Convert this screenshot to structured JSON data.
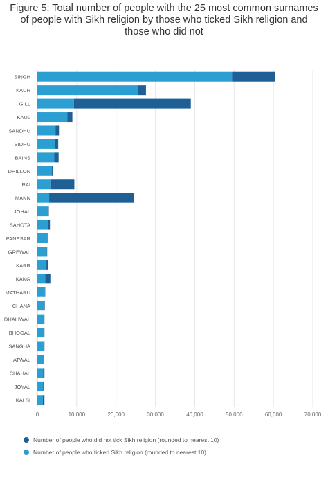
{
  "chart_data": {
    "type": "bar",
    "orientation": "horizontal",
    "stacked": true,
    "title": "Figure 5: Total number of people with the 25 most common surnames of people with Sikh religion by those who ticked Sikh religion and those who did not",
    "categories": [
      "SINGH",
      "KAUR",
      "GILL",
      "KAUL",
      "SANDHU",
      "SIDHU",
      "BAINS",
      "DHILLON",
      "RAI",
      "MANN",
      "JOHAL",
      "SAHOTA",
      "PANESAR",
      "GREWAL",
      "KARR",
      "KANG",
      "MATHARU",
      "CHANA",
      "DHALIWAL",
      "BHOGAL",
      "SANGHA",
      "ATWAL",
      "CHAHAL",
      "JOYAL",
      "KALSI"
    ],
    "series": [
      {
        "name": "Number of people who ticked Sikh religion (rounded to nearest 10)",
        "color": "#2b9fd1",
        "values": [
          49500,
          25500,
          9300,
          7600,
          4600,
          4500,
          4300,
          3700,
          3300,
          3000,
          2800,
          2700,
          2600,
          2400,
          2300,
          2000,
          1900,
          1800,
          1700,
          1700,
          1700,
          1600,
          1500,
          1500,
          1400
        ]
      },
      {
        "name": "Number of people who did not tick Sikh religion (rounded to nearest 10)",
        "color": "#1e5f96",
        "values": [
          11000,
          2100,
          29700,
          1300,
          900,
          800,
          1100,
          300,
          6100,
          21500,
          100,
          500,
          100,
          100,
          400,
          1300,
          100,
          100,
          100,
          100,
          100,
          100,
          300,
          100,
          400
        ]
      }
    ],
    "xlim": [
      0,
      70000
    ],
    "xticks": [
      0,
      10000,
      20000,
      30000,
      40000,
      50000,
      60000,
      70000
    ],
    "xtick_labels": [
      "0",
      "10,000",
      "20,000",
      "30,000",
      "40,000",
      "50,000",
      "60,000",
      "70,000"
    ],
    "grid": true,
    "legend_position": "bottom-left",
    "legend_order": [
      1,
      0
    ]
  }
}
